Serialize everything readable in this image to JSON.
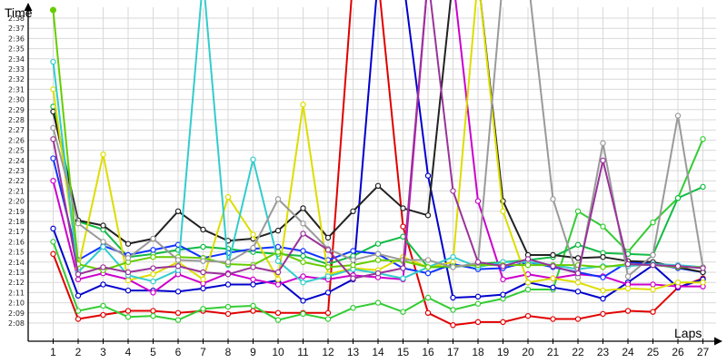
{
  "chart_data": {
    "type": "line",
    "title": "",
    "ylabel": "Time",
    "xlabel": "Laps",
    "x": [
      1,
      2,
      3,
      4,
      5,
      6,
      7,
      8,
      9,
      10,
      11,
      12,
      13,
      14,
      15,
      16,
      17,
      18,
      19,
      20,
      21,
      22,
      23,
      24,
      25,
      26,
      27
    ],
    "y_tick_labels": [
      "2:08",
      "2:09",
      "2:10",
      "2:11",
      "2:12",
      "2:13",
      "2:14",
      "2:15",
      "2:16",
      "2:17",
      "2:18",
      "2:19",
      "2:20",
      "2:21",
      "2:22",
      "2:23",
      "2:24",
      "2:25",
      "2:26",
      "2:27",
      "2:28",
      "2:29",
      "2:30",
      "2:31",
      "2:32",
      "2:33",
      "2:34",
      "2:35",
      "2:36",
      "2:37",
      "2:38"
    ],
    "x_tick_labels": [
      "1",
      "2",
      "3",
      "4",
      "5",
      "6",
      "7",
      "8",
      "9",
      "10",
      "11",
      "12",
      "13",
      "14",
      "15",
      "16",
      "17",
      "18",
      "19",
      "20",
      "21",
      "22",
      "23",
      "24",
      "25",
      "26",
      "27"
    ],
    "y_unit": "seconds past 2:00",
    "ylim": [
      7.0,
      41.5
    ],
    "xlim": [
      0.0,
      27.2
    ],
    "grid": true,
    "series": [
      {
        "color": "#e00000",
        "values": [
          14.8,
          8.4,
          8.8,
          9.2,
          9.2,
          9.0,
          9.2,
          8.9,
          9.2,
          9.0,
          9.0,
          9.0,
          42,
          42,
          17.5,
          9.0,
          7.8,
          8.1,
          8.1,
          8.7,
          8.4,
          8.4,
          8.9,
          9.2,
          9.1,
          11.5,
          12.4
        ]
      },
      {
        "color": "#33cc33",
        "values": [
          16.0,
          9.2,
          9.7,
          8.6,
          8.7,
          8.3,
          9.4,
          9.6,
          9.7,
          8.3,
          8.9,
          8.4,
          9.5,
          10.0,
          9.1,
          10.5,
          9.3,
          9.9,
          10.4,
          11.3,
          11.3,
          19.0,
          17.5,
          15.0,
          17.9,
          20.3,
          26.1
        ]
      },
      {
        "color": "#0000cc",
        "values": [
          17.3,
          10.7,
          11.8,
          11.2,
          11.2,
          11.1,
          11.4,
          11.8,
          11.8,
          12.2,
          10.2,
          11.0,
          12.3,
          42,
          42,
          22.5,
          10.5,
          10.6,
          10.8,
          12.0,
          11.5,
          11.1,
          10.4,
          12.0,
          13.7,
          11.5,
          12.3
        ]
      },
      {
        "color": "#cc00cc",
        "values": [
          22.0,
          12.3,
          12.9,
          12.3,
          11.0,
          12.8,
          11.9,
          12.9,
          12.3,
          11.8,
          12.6,
          12.3,
          12.7,
          12.5,
          12.3,
          42,
          42,
          20.0,
          12.3,
          12.8,
          12.4,
          12.8,
          12.6,
          11.8,
          11.8,
          11.6,
          11.6
        ]
      },
      {
        "color": "#11bb44",
        "values": [
          29.3,
          18.0,
          17.2,
          14.5,
          14.8,
          15.2,
          15.5,
          15.3,
          15.0,
          14.8,
          14.6,
          13.8,
          14.6,
          15.8,
          16.5,
          13.5,
          13.5,
          13.8,
          14.0,
          14.2,
          14.5,
          15.7,
          14.9,
          14.8,
          14.7,
          20.3,
          21.4
        ]
      },
      {
        "color": "#1133ff",
        "values": [
          24.2,
          14.2,
          15.6,
          14.7,
          15.2,
          15.7,
          14.4,
          14.9,
          15.3,
          15.5,
          15.1,
          14.2,
          15.1,
          14.8,
          13.4,
          12.9,
          13.8,
          13.3,
          13.4,
          14.0,
          13.5,
          13.0,
          12.5,
          14.0,
          13.8,
          13.4,
          13.0
        ]
      },
      {
        "color": "#222222",
        "values": [
          28.8,
          18.1,
          17.6,
          15.8,
          16.3,
          19.0,
          17.2,
          16.1,
          16.3,
          17.1,
          19.3,
          16.4,
          19.0,
          21.5,
          19.3,
          18.6,
          42,
          42,
          20.0,
          14.7,
          14.7,
          14.4,
          14.5,
          14.1,
          14.0,
          13.5,
          13.0
        ]
      },
      {
        "color": "#dddd00",
        "values": [
          31.0,
          13.4,
          24.6,
          12.2,
          12.8,
          14.0,
          12.3,
          20.4,
          16.7,
          12.3,
          29.5,
          12.8,
          13.4,
          13.2,
          14.5,
          13.5,
          14.0,
          42,
          19.0,
          12.0,
          12.4,
          12.0,
          11.2,
          11.4,
          11.3,
          12.0,
          12.0
        ]
      },
      {
        "color": "#33cccc",
        "values": [
          33.7,
          13.0,
          15.5,
          12.7,
          12.1,
          13.2,
          42,
          13.7,
          24.1,
          14.1,
          12.0,
          12.6,
          13.3,
          12.9,
          12.4,
          13.5,
          14.5,
          13.5,
          14.0,
          14.0,
          13.7,
          13.3,
          13.6,
          13.6,
          13.8,
          13.7,
          13.5
        ]
      },
      {
        "color": "#66cc00",
        "values": [
          38.8,
          13.8,
          13.2,
          14.0,
          14.5,
          14.5,
          14.4,
          13.8,
          13.7,
          15.0,
          14.0,
          13.5,
          13.7,
          14.2,
          14.1,
          13.5,
          13.6,
          13.7,
          13.7,
          13.7,
          13.7,
          13.7,
          13.5,
          13.8,
          13.7,
          13.5,
          13.5
        ]
      },
      {
        "color": "#9a9a9a",
        "values": [
          27.2,
          17.8,
          16.0,
          14.4,
          16.3,
          14.2,
          14.1,
          14.0,
          15.4,
          20.2,
          17.8,
          15.3,
          14.2,
          14.8,
          14.2,
          14.2,
          13.5,
          13.9,
          42,
          42,
          20.2,
          12.5,
          25.7,
          12.6,
          14.7,
          28.4,
          13.5
        ]
      },
      {
        "color": "#993399",
        "values": [
          26.1,
          12.8,
          13.5,
          13.0,
          13.4,
          13.6,
          13.0,
          12.8,
          13.5,
          13.0,
          16.8,
          15.2,
          12.4,
          12.9,
          13.4,
          42,
          21.0,
          14.0,
          13.6,
          14.3,
          13.6,
          12.9,
          24.0,
          13.8,
          13.7,
          13.6,
          13.4
        ]
      }
    ]
  }
}
